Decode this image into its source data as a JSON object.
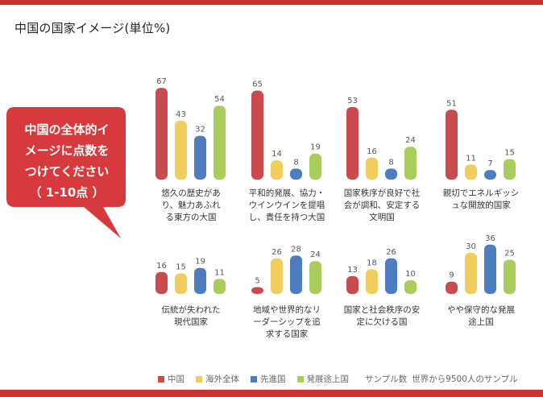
{
  "title": "中国の国家イメージ(単位%)",
  "callout": {
    "lines": [
      "中国の全体的イ",
      "メージに点数を",
      "つけてください",
      "（ 1-10点 ）"
    ]
  },
  "colors": {
    "中国": "#c94b4e",
    "海外全体": "#f0cd5d",
    "先進国": "#4d7cc0",
    "発展途上国": "#a9cd5a",
    "accent": "#c9332f"
  },
  "legend": {
    "items": [
      "中国",
      "海外全体",
      "先進国",
      "発展途上国"
    ],
    "sample_label": "サンプル数",
    "sample_value": "世界から9500人のサンプル"
  },
  "chart_data": {
    "type": "bar",
    "series_names": [
      "中国",
      "海外全体",
      "先進国",
      "発展途上国"
    ],
    "ylim": [
      0,
      70
    ],
    "groups": [
      {
        "caption": "悠久の歴史があ\nり、魅力あふれ\nる東方の大国",
        "values": [
          67,
          43,
          32,
          54
        ]
      },
      {
        "caption": "平和的発展、協力・\nウインウインを提唱\nし、責任を持つ大国",
        "values": [
          65,
          14,
          8,
          19
        ]
      },
      {
        "caption": "国家秩序が良好で社\n会が調和、安定する\n文明国",
        "values": [
          53,
          16,
          8,
          24
        ]
      },
      {
        "caption": "親切でエネルギッシ\nュな開放的国家",
        "values": [
          51,
          11,
          7,
          15
        ]
      },
      {
        "caption": "伝統が失われた\n現代国家",
        "values": [
          16,
          15,
          19,
          11
        ]
      },
      {
        "caption": "地域や世界的なリ\nーダーシップを追\n求する国家",
        "values": [
          5,
          26,
          28,
          24
        ]
      },
      {
        "caption": "国家と社会秩序の安\n定に欠ける国",
        "values": [
          13,
          18,
          26,
          10
        ]
      },
      {
        "caption": "やや保守的な発展\n途上国",
        "values": [
          9,
          30,
          36,
          25
        ]
      }
    ]
  }
}
